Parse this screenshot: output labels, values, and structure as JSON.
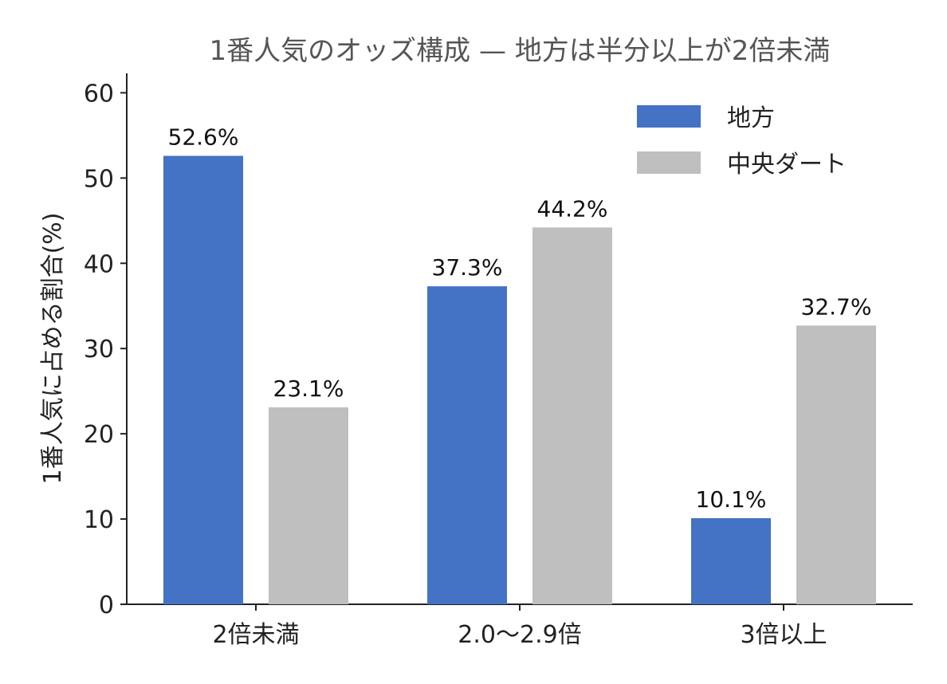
{
  "chart_data": {
    "type": "bar",
    "title": "1番人気のオッズ構成 — 地方は半分以上が2倍未満",
    "xlabel": "",
    "ylabel": "1番人気に占める割合(%)",
    "ylim": [
      0,
      62
    ],
    "yticks": [
      0,
      10,
      20,
      30,
      40,
      50,
      60
    ],
    "categories": [
      "2倍未満",
      "2.0〜2.9倍",
      "3倍以上"
    ],
    "series": [
      {
        "name": "地方",
        "values": [
          52.6,
          37.3,
          10.1
        ],
        "labels": [
          "52.6%",
          "37.3%",
          "10.1%"
        ],
        "color": "#4472c4"
      },
      {
        "name": "中央ダート",
        "values": [
          23.1,
          44.2,
          32.7
        ],
        "labels": [
          "23.1%",
          "44.2%",
          "32.7%"
        ],
        "color": "#bfbfbf"
      }
    ],
    "legend": "top-right",
    "grid": false
  }
}
